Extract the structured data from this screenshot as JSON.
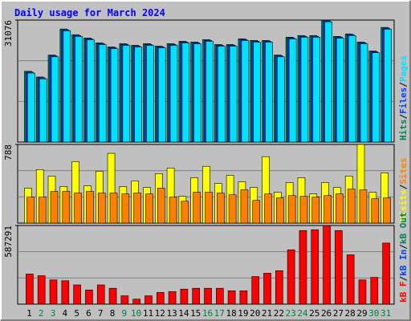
{
  "title": "Daily usage for March 2024",
  "separator": "/",
  "chart_data": [
    {
      "type": "bar",
      "ylim": [
        0,
        31076
      ],
      "yticks": [
        31076
      ],
      "series": [
        {
          "name": "Hits",
          "color": "#00805c",
          "values": [
            18024,
            16574,
            22167,
            28797,
            27347,
            26518,
            25275,
            24239,
            25068,
            24654,
            25068,
            24446,
            25068,
            25690,
            25482,
            26104,
            24861,
            24861,
            26311,
            25897,
            25897,
            22167,
            26725,
            27140,
            27140,
            31076,
            26932,
            27554,
            25482,
            23203,
            29211
          ]
        },
        {
          "name": "Files",
          "color": "#0040ff",
          "values": [
            17824,
            16374,
            21967,
            28597,
            27147,
            26318,
            25075,
            24039,
            24868,
            24454,
            24868,
            24246,
            24868,
            25490,
            25282,
            25904,
            24661,
            24661,
            26111,
            25697,
            25697,
            21967,
            26525,
            26940,
            26940,
            30876,
            26732,
            27354,
            25282,
            23003,
            29011
          ]
        },
        {
          "name": "Pages",
          "color": "#00e0ff",
          "values": [
            17574,
            16124,
            21717,
            28347,
            26897,
            26068,
            24825,
            23789,
            24618,
            24204,
            24618,
            23996,
            24618,
            25240,
            25032,
            25654,
            24411,
            24411,
            25861,
            25447,
            25447,
            21717,
            26275,
            26690,
            26690,
            30626,
            26482,
            27104,
            25032,
            22753,
            28761
          ]
        }
      ]
    },
    {
      "type": "bar",
      "ylim": [
        0,
        788
      ],
      "yticks": [
        788
      ],
      "series": [
        {
          "name": "Visits",
          "color": "#ffff00",
          "values": [
            349,
            536,
            471,
            366,
            617,
            374,
            520,
            699,
            366,
            422,
            357,
            496,
            552,
            268,
            455,
            569,
            398,
            479,
            414,
            357,
            666,
            309,
            406,
            455,
            292,
            406,
            357,
            471,
            788,
            309,
            504
          ]
        },
        {
          "name": "Sites",
          "color": "#ff8000",
          "values": [
            260,
            260,
            317,
            317,
            301,
            317,
            301,
            301,
            292,
            301,
            292,
            349,
            260,
            219,
            309,
            309,
            301,
            284,
            333,
            227,
            292,
            252,
            276,
            268,
            260,
            276,
            292,
            341,
            333,
            244,
            252
          ]
        }
      ]
    },
    {
      "type": "bar",
      "ylim": [
        0,
        587291
      ],
      "yticks": [
        587291
      ],
      "series": [
        {
          "name": "kB F",
          "color": "#ff0000",
          "values": [
            224921,
            212425,
            181186,
            174938,
            143699,
            106213,
            143699,
            118708,
            62478,
            37487,
            62478,
            87469,
            93717,
            112460,
            118708,
            118708,
            118708,
            99965,
            99965,
            206177,
            231169,
            249912,
            406107,
            549806,
            556054,
            587291,
            549806,
            368620,
            181186,
            199930,
            456089
          ]
        }
      ],
      "legend_extra": [
        {
          "name": "kB In",
          "color": "#0040ff"
        },
        {
          "name": "kB Out",
          "color": "#00805c"
        }
      ],
      "categories": [
        "1",
        "2",
        "3",
        "4",
        "5",
        "6",
        "7",
        "8",
        "9",
        "10",
        "11",
        "12",
        "13",
        "14",
        "15",
        "16",
        "17",
        "18",
        "19",
        "20",
        "21",
        "22",
        "23",
        "24",
        "25",
        "26",
        "27",
        "28",
        "29",
        "30",
        "31"
      ],
      "label_colors": [
        "#000000",
        "#008040",
        "#008040",
        "#000000",
        "#000000",
        "#000000",
        "#000000",
        "#000000",
        "#008040",
        "#008040",
        "#000000",
        "#000000",
        "#000000",
        "#000000",
        "#000000",
        "#008040",
        "#008040",
        "#000000",
        "#000000",
        "#000000",
        "#000000",
        "#000000",
        "#008040",
        "#008040",
        "#000000",
        "#000000",
        "#000000",
        "#000000",
        "#000000",
        "#008040",
        "#008040"
      ]
    }
  ]
}
